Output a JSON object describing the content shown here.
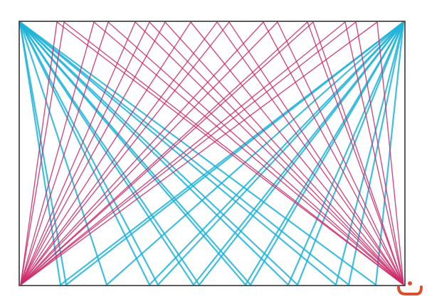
{
  "drawing": {
    "frame_color": "#333333",
    "upper_corner_lines_color": "#1fb3d9",
    "lower_corner_lines_color": "#cc2a6a",
    "logo_color": "#d9502f",
    "logo_icon": "smiley-icon"
  }
}
